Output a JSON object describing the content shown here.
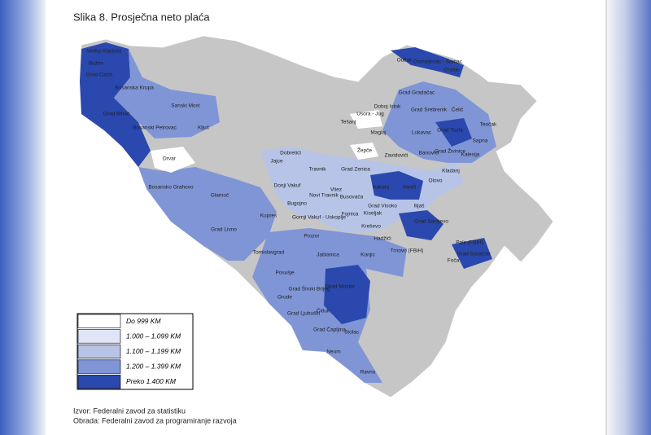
{
  "header": {
    "title": "Slika 8. Prosječna neto plaća"
  },
  "map": {
    "labels": [
      "Velika Kladuša",
      "Bužim",
      "Grad Cazin",
      "Bosanska Krupa",
      "Grad Bihać",
      "Sanski Most",
      "Bosanski Petrovac",
      "Ključ",
      "Drvar",
      "Bosansko Grahovo",
      "Glamoč",
      "Grad Livno",
      "Kupres",
      "Tomislavgrad",
      "Posušje",
      "Grude",
      "Grad Široki Brijeg",
      "Grad Mostar",
      "Grad Ljubuški",
      "Čitluk",
      "Grad Čapljina",
      "Stolac",
      "Neum",
      "Ravno",
      "Prozor",
      "Jablanica",
      "Konjic",
      "Gornji Vakuf - Uskoplje",
      "Bugojno",
      "Donji Vakuf",
      "Novi Travnik",
      "Travnik",
      "Jajce",
      "Dobretići",
      "Grad Zenica",
      "Vitez",
      "Busovača",
      "Kakanj",
      "Vareš",
      "Fojnica",
      "Kiseljak",
      "Kreševo",
      "Grad Visoko",
      "Ilijaš",
      "Hadžići",
      "Trnovo (FBiH)",
      "Grad Sarajevo",
      "Olovo",
      "Kladanj",
      "Grad Živinice",
      "Banovići",
      "Zavidovići",
      "Žepče",
      "Maglaj",
      "Tešanj",
      "Usora - Jug",
      "Doboj Istok",
      "Grad Gradačac",
      "Grad Srebrenik",
      "Čelić",
      "Grad Tuzla",
      "Lukavac",
      "Kalesija",
      "Teočak",
      "Sapna",
      "Odžak",
      "Domaljevac - Šamac",
      "Orašje",
      "Pale (FBiH)",
      "Grad Goražde",
      "Foča"
    ]
  },
  "legend": {
    "items": [
      {
        "label": "Do 999 KM",
        "color": "#ffffff"
      },
      {
        "label": "1.000 – 1.099 KM",
        "color": "#dfe5f5"
      },
      {
        "label": "1.100 – 1.199 KM",
        "color": "#b7c4e8"
      },
      {
        "label": "1.200 – 1.399 KM",
        "color": "#7f95d6"
      },
      {
        "label": "Preko 1.400 KM",
        "color": "#2a48ad"
      }
    ]
  },
  "source": {
    "lines": [
      "Izvor: Federalni zavod za statistiku",
      "Obrada: Federalni zavod za programiranje razvoja"
    ]
  }
}
